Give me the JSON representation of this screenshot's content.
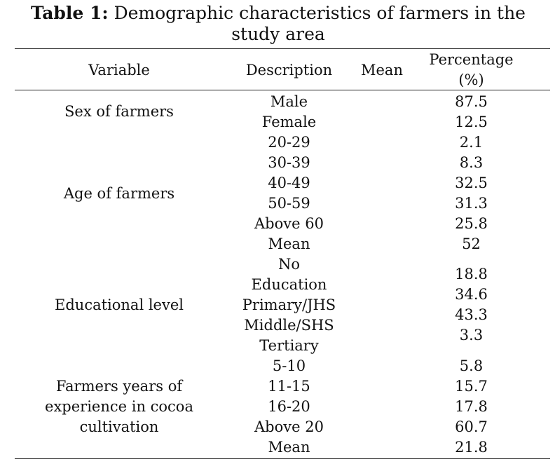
{
  "table": {
    "title_bold": "Table 1:",
    "title_text": " Demographic characteristics of farmers in the study area",
    "headers": {
      "variable": "Variable",
      "description": "Description",
      "mean": "Mean",
      "percentage_line1": "Percentage",
      "percentage_line2": "(%)"
    },
    "groups": [
      {
        "variable_lines": [
          "Sex of farmers"
        ],
        "descriptions": [
          "Male",
          "Female"
        ],
        "percentages": [
          "87.5",
          "12.5"
        ]
      },
      {
        "variable_lines": [
          "Age of farmers"
        ],
        "descriptions": [
          "20-29",
          "30-39",
          "40-49",
          "50-59",
          "Above 60",
          "Mean"
        ],
        "percentages": [
          "2.1",
          "8.3",
          "32.5",
          "31.3",
          "25.8",
          "52"
        ]
      },
      {
        "variable_lines": [
          "Educational level"
        ],
        "descriptions": [
          "No",
          "Education",
          "Primary/JHS",
          "Middle/SHS",
          "Tertiary"
        ],
        "percentages": [
          "18.8",
          "34.6",
          "43.3",
          "3.3"
        ]
      },
      {
        "variable_lines": [
          "Farmers years of",
          "experience in cocoa",
          "cultivation"
        ],
        "descriptions": [
          "5-10",
          "11-15",
          "16-20",
          "Above 20",
          "Mean"
        ],
        "percentages": [
          "5.8",
          "15.7",
          "17.8",
          "60.7",
          "21.8"
        ]
      }
    ]
  }
}
